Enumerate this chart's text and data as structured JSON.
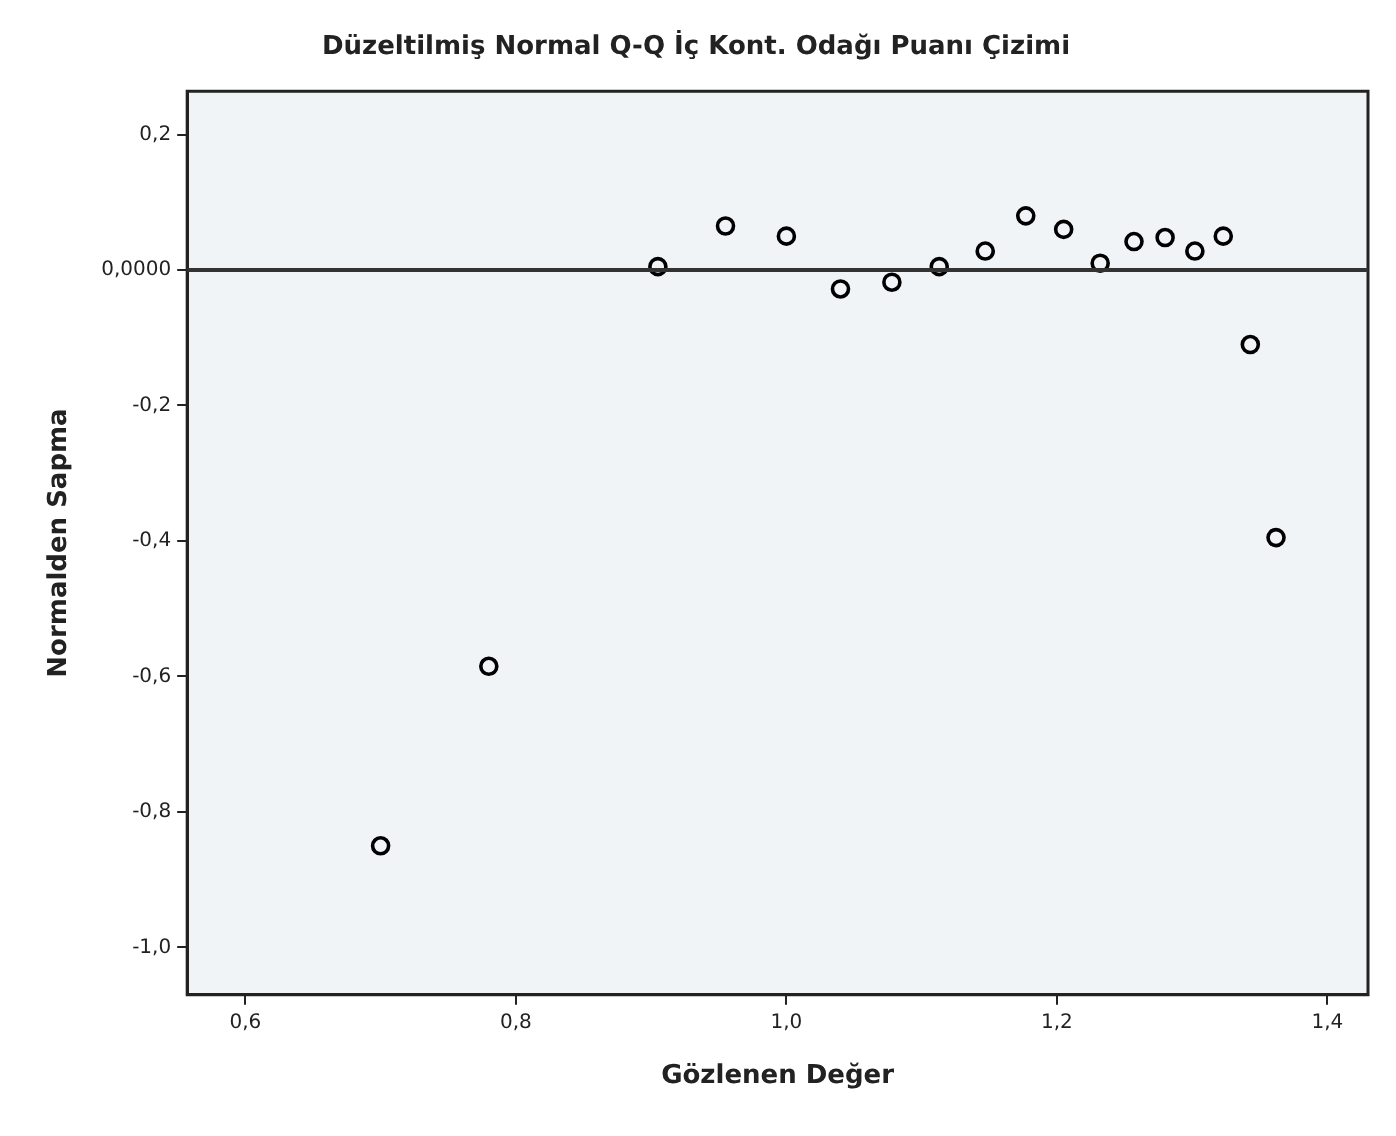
{
  "chart_data": {
    "type": "scatter",
    "title": "Düzeltilmiş Normal Q-Q İç Kont. Odağı Puanı Çizimi",
    "xlabel": "Gözlenen Değer",
    "ylabel": "Normalden Sapma",
    "x": [
      0.7,
      0.78,
      0.905,
      0.955,
      1.0,
      1.04,
      1.078,
      1.113,
      1.147,
      1.177,
      1.205,
      1.232,
      1.257,
      1.28,
      1.302,
      1.323,
      1.343,
      1.362
    ],
    "values": [
      -0.85,
      -0.585,
      0.005,
      0.065,
      0.05,
      -0.028,
      -0.018,
      0.005,
      0.028,
      0.08,
      0.06,
      0.01,
      0.042,
      0.048,
      0.028,
      0.05,
      -0.11,
      -0.395
    ],
    "color": "#000000",
    "marker": "circle",
    "grid": false,
    "legend": false,
    "xlim": [
      0.557,
      1.43
    ],
    "xticks": [
      {
        "value": 0.6,
        "label": "0,6"
      },
      {
        "value": 0.8,
        "label": "0,8"
      },
      {
        "value": 1.0,
        "label": "1,0"
      },
      {
        "value": 1.2,
        "label": "1,2"
      },
      {
        "value": 1.4,
        "label": "1,4"
      }
    ],
    "ylim": [
      -1.07,
      0.264
    ],
    "yticks": [
      {
        "value": -1.0,
        "label": "-1,0"
      },
      {
        "value": -0.8,
        "label": "-0,8"
      },
      {
        "value": -0.6,
        "label": "-0,6"
      },
      {
        "value": -0.4,
        "label": "-0,4"
      },
      {
        "value": -0.2,
        "label": "-0,2"
      },
      {
        "value": 0,
        "label": "0,0000"
      },
      {
        "value": 0.2,
        "label": "0,2"
      }
    ],
    "ref_lines": [
      {
        "axis": "y",
        "value": 0,
        "color": "#333333"
      }
    ]
  }
}
